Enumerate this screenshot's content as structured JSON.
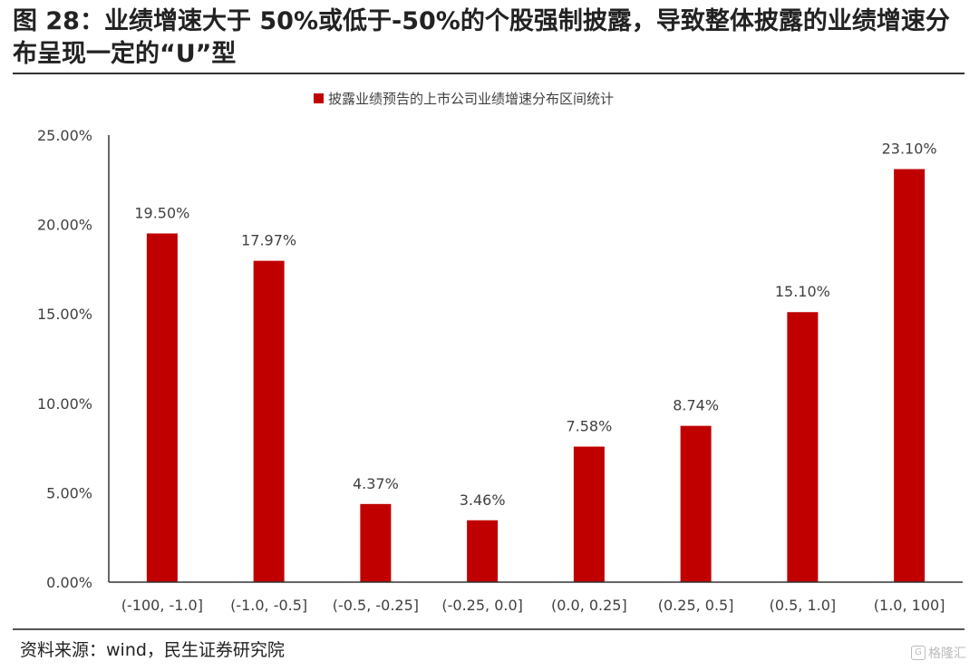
{
  "title": "图 28：业绩增速大于 50%或低于-50%的个股强制披露，导致整体披露的业绩增速分布呈现一定的“U”型",
  "source": "资料来源：wind，民生证券研究院",
  "watermark": "格隆汇",
  "watermark_icon": "G",
  "colors": {
    "bar": "#C00000",
    "axis": "#333333",
    "text": "#404040"
  },
  "chart_data": {
    "type": "bar",
    "legend": "披露业绩预告的上市公司业绩增速分布区间统计",
    "categories": [
      "(-100, -1.0]",
      "(-1.0, -0.5]",
      "(-0.5, -0.25]",
      "(-0.25, 0.0]",
      "(0.0, 0.25]",
      "(0.25, 0.5]",
      "(0.5, 1.0]",
      "(1.0, 100]"
    ],
    "values": [
      19.5,
      17.97,
      4.37,
      3.46,
      7.58,
      8.74,
      15.1,
      23.1
    ],
    "data_labels": [
      "19.50%",
      "17.97%",
      "4.37%",
      "3.46%",
      "7.58%",
      "8.74%",
      "15.10%",
      "23.10%"
    ],
    "ylim": [
      0,
      25
    ],
    "yticks": [
      "0.00%",
      "5.00%",
      "10.00%",
      "15.00%",
      "20.00%",
      "25.00%"
    ],
    "xlabel": "",
    "ylabel": "",
    "grid": false,
    "legend_position": "top-center"
  }
}
